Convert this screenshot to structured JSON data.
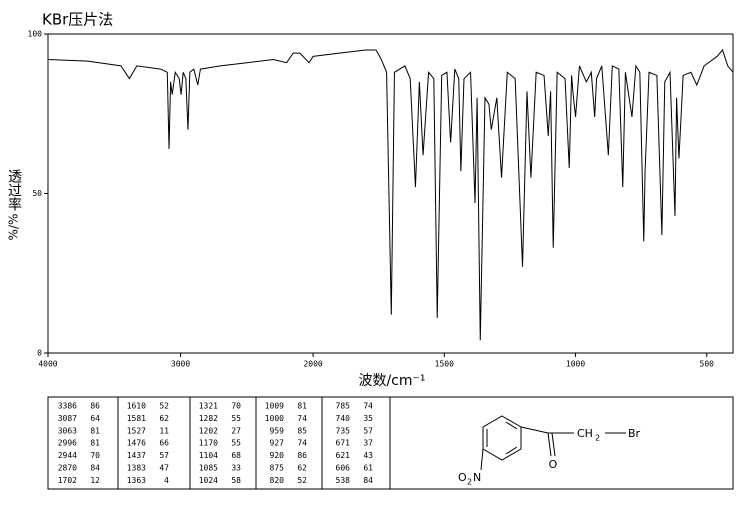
{
  "chart_data": {
    "type": "line",
    "title": "KBr压片法",
    "x_label": "波数/cm⁻¹",
    "y_label": "透过率",
    "y_unit": "%/%",
    "x": [
      4000,
      3700,
      3450,
      3386,
      3330,
      3150,
      3100,
      3087,
      3075,
      3063,
      3040,
      3010,
      2996,
      2980,
      2960,
      2944,
      2930,
      2900,
      2870,
      2850,
      2700,
      2500,
      2300,
      2200,
      2150,
      2100,
      2030,
      2000,
      1900,
      1800,
      1760,
      1740,
      1720,
      1702,
      1690,
      1650,
      1630,
      1610,
      1595,
      1581,
      1560,
      1540,
      1527,
      1510,
      1490,
      1476,
      1460,
      1445,
      1437,
      1425,
      1400,
      1383,
      1375,
      1363,
      1345,
      1330,
      1321,
      1300,
      1282,
      1260,
      1230,
      1202,
      1185,
      1170,
      1150,
      1120,
      1104,
      1095,
      1085,
      1070,
      1040,
      1024,
      1015,
      1009,
      1000,
      985,
      959,
      940,
      927,
      920,
      900,
      875,
      860,
      835,
      820,
      810,
      785,
      770,
      755,
      740,
      735,
      720,
      690,
      671,
      660,
      640,
      621,
      615,
      606,
      590,
      560,
      538,
      510,
      460,
      440,
      420,
      400
    ],
    "values": [
      92,
      91.5,
      90,
      86,
      90,
      89,
      88,
      64,
      85,
      81,
      88,
      86,
      81,
      88,
      86,
      70,
      88,
      89,
      84,
      89,
      90,
      91,
      92,
      91,
      94,
      94,
      91,
      93,
      94,
      95,
      95,
      92,
      88,
      12,
      88,
      90,
      86,
      52,
      85,
      62,
      88,
      86,
      11,
      87,
      88,
      66,
      89,
      86,
      57,
      86,
      88,
      47,
      80,
      4,
      80,
      78,
      70,
      80,
      55,
      88,
      86,
      27,
      82,
      55,
      88,
      87,
      68,
      82,
      33,
      88,
      86,
      58,
      87,
      81,
      74,
      90,
      85,
      88,
      74,
      86,
      90,
      62,
      90,
      89,
      52,
      88,
      74,
      90,
      88,
      35,
      57,
      88,
      87,
      37,
      85,
      88,
      43,
      80,
      61,
      87,
      88,
      84,
      90,
      93,
      95,
      90,
      88
    ],
    "color": "#000000",
    "xlim": [
      4000,
      400
    ],
    "x_scale_change": 2000,
    "xticks": [
      4000,
      3000,
      2000,
      1500,
      1000,
      500
    ],
    "ylim": [
      0,
      100
    ],
    "yticks": [
      0,
      50,
      100
    ],
    "peak_table": [
      [
        [
          3386,
          86
        ],
        [
          3087,
          64
        ],
        [
          3063,
          81
        ],
        [
          2996,
          81
        ],
        [
          2944,
          70
        ],
        [
          2870,
          84
        ],
        [
          1702,
          12
        ]
      ],
      [
        [
          1610,
          52
        ],
        [
          1581,
          62
        ],
        [
          1527,
          11
        ],
        [
          1476,
          66
        ],
        [
          1437,
          57
        ],
        [
          1383,
          47
        ],
        [
          1363,
          4
        ]
      ],
      [
        [
          1321,
          70
        ],
        [
          1282,
          55
        ],
        [
          1202,
          27
        ],
        [
          1170,
          55
        ],
        [
          1104,
          68
        ],
        [
          1085,
          33
        ],
        [
          1024,
          58
        ]
      ],
      [
        [
          1009,
          81
        ],
        [
          1000,
          74
        ],
        [
          959,
          85
        ],
        [
          927,
          74
        ],
        [
          920,
          86
        ],
        [
          875,
          62
        ],
        [
          820,
          52
        ]
      ],
      [
        [
          785,
          74
        ],
        [
          740,
          35
        ],
        [
          735,
          57
        ],
        [
          671,
          37
        ],
        [
          621,
          43
        ],
        [
          606,
          61
        ],
        [
          538,
          84
        ]
      ]
    ],
    "structure": {
      "carbonyl_o": "O",
      "ch": "CH",
      "ch_sub": "2",
      "br": "Br",
      "nitro_o": "O",
      "nitro_sub": "2",
      "nitro_n": "N"
    }
  }
}
